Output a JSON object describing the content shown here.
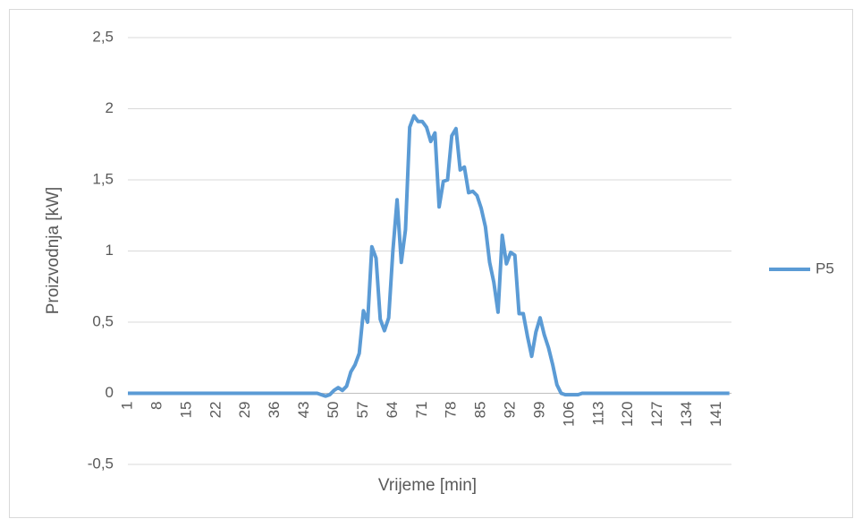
{
  "chart_data": {
    "type": "line",
    "x_label": "Vrijeme [min]",
    "y_label": "Proizvodnja [kW]",
    "categories": [
      1,
      null,
      null,
      null,
      null,
      null,
      null,
      8,
      null,
      null,
      null,
      null,
      null,
      null,
      15,
      null,
      null,
      null,
      null,
      null,
      null,
      22,
      null,
      null,
      null,
      null,
      null,
      null,
      29,
      null,
      null,
      null,
      null,
      null,
      null,
      36,
      null,
      null,
      null,
      null,
      null,
      null,
      43,
      null,
      null,
      null,
      null,
      null,
      null,
      50,
      null,
      null,
      null,
      null,
      null,
      null,
      57,
      null,
      null,
      null,
      null,
      null,
      null,
      64,
      null,
      null,
      null,
      null,
      null,
      null,
      71,
      null,
      null,
      null,
      null,
      null,
      null,
      78,
      null,
      null,
      null,
      null,
      null,
      null,
      85,
      null,
      null,
      null,
      null,
      null,
      null,
      92,
      null,
      null,
      null,
      null,
      null,
      null,
      99,
      null,
      null,
      null,
      null,
      null,
      null,
      106,
      null,
      null,
      null,
      null,
      null,
      null,
      113,
      null,
      null,
      null,
      null,
      null,
      null,
      120,
      null,
      null,
      null,
      null,
      null,
      null,
      127,
      null,
      null,
      null,
      null,
      null,
      null,
      134,
      null,
      null,
      null,
      null,
      null,
      null,
      141,
      null,
      null,
      null
    ],
    "series": [
      {
        "name": "P5",
        "color": "#5b9bd5",
        "values": [
          0,
          0,
          0,
          0,
          0,
          0,
          0,
          0,
          0,
          0,
          0,
          0,
          0,
          0,
          0,
          0,
          0,
          0,
          0,
          0,
          0,
          0,
          0,
          0,
          0,
          0,
          0,
          0,
          0,
          0,
          0,
          0,
          0,
          0,
          0,
          0,
          0,
          0,
          0,
          0,
          0,
          0,
          0,
          0,
          0,
          0,
          -0.01,
          -0.02,
          -0.01,
          0.02,
          0.04,
          0.02,
          0.05,
          0.15,
          0.2,
          0.28,
          0.58,
          0.5,
          1.03,
          0.95,
          0.52,
          0.44,
          0.53,
          1.0,
          1.36,
          0.92,
          1.15,
          1.87,
          1.95,
          1.91,
          1.91,
          1.87,
          1.77,
          1.83,
          1.31,
          1.49,
          1.5,
          1.81,
          1.86,
          1.57,
          1.59,
          1.41,
          1.42,
          1.39,
          1.3,
          1.17,
          0.92,
          0.78,
          0.57,
          1.11,
          0.91,
          0.99,
          0.97,
          0.56,
          0.56,
          0.4,
          0.26,
          0.43,
          0.53,
          0.41,
          0.32,
          0.2,
          0.06,
          0.0,
          -0.01,
          -0.01,
          -0.01,
          -0.01,
          0,
          0,
          0,
          0,
          0,
          0,
          0,
          0,
          0,
          0,
          0,
          0,
          0,
          0,
          0,
          0,
          0,
          0,
          0,
          0,
          0,
          0,
          0,
          0,
          0,
          0,
          0,
          0,
          0,
          0,
          0,
          0,
          0,
          0,
          0,
          0
        ]
      }
    ],
    "ylim": [
      -0.5,
      2.5
    ],
    "yticks": [
      {
        "value": -0.5,
        "label": "-0,5"
      },
      0,
      {
        "value": 0.5,
        "label": "0,5"
      },
      1,
      {
        "value": 1.5,
        "label": "1,5"
      },
      2,
      {
        "value": 2.5,
        "label": "2,5"
      }
    ],
    "grid": true,
    "legend": "right"
  }
}
